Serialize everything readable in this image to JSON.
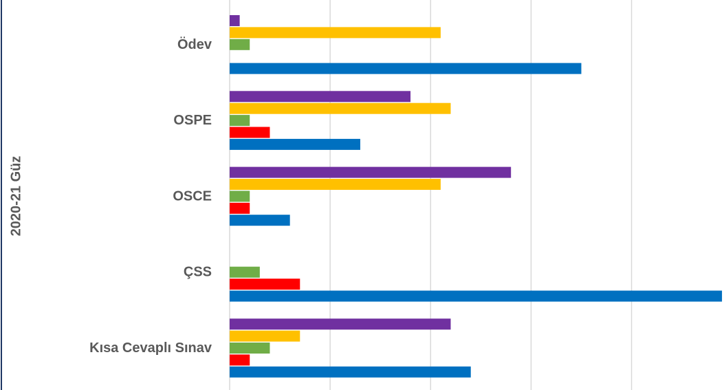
{
  "chart_data": {
    "type": "bar",
    "orientation": "horizontal",
    "y_axis_label": "2020-21 Güz",
    "categories": [
      "Ödev",
      "OSPE",
      "OSCE",
      "ÇSS",
      "Kısa Cevaplı Sınav"
    ],
    "series": [
      {
        "color": "#7030a0",
        "values": [
          1,
          18,
          28,
          0,
          22
        ]
      },
      {
        "color": "#ffc000",
        "values": [
          21,
          22,
          21,
          0,
          7
        ]
      },
      {
        "color": "#70ad47",
        "values": [
          2,
          2,
          2,
          3,
          4
        ]
      },
      {
        "color": "#ff0000",
        "values": [
          0,
          4,
          2,
          7,
          2
        ]
      },
      {
        "color": "#0070c0",
        "values": [
          35,
          13,
          6,
          49,
          24
        ]
      }
    ],
    "xlim": [
      0,
      49.2
    ],
    "xticks": [
      0,
      10,
      20,
      30,
      40
    ],
    "grid": true
  }
}
